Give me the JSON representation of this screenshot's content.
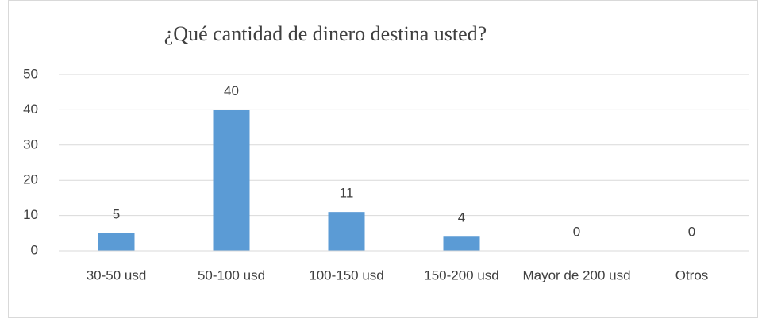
{
  "chart_data": {
    "type": "bar",
    "title": "¿Qué cantidad de dinero destina usted?",
    "categories": [
      "30-50 usd",
      "50-100 usd",
      "100-150 usd",
      "150-200 usd",
      "Mayor de 200 usd",
      "Otros"
    ],
    "values": [
      5,
      40,
      11,
      4,
      0,
      0
    ],
    "color": "#5b9bd5",
    "ylim": [
      0,
      50
    ],
    "yticks": [
      0,
      10,
      20,
      30,
      40,
      50
    ],
    "grid": true,
    "data_labels": true
  }
}
